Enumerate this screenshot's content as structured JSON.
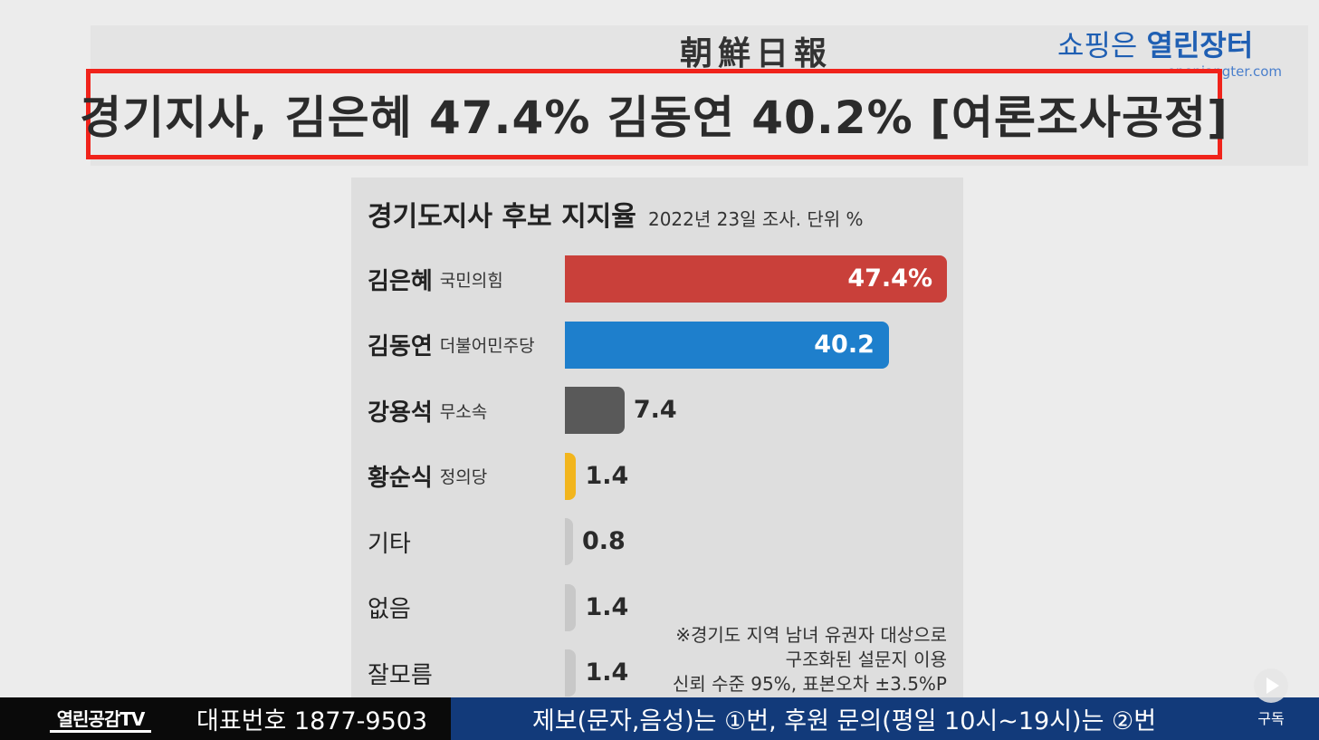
{
  "masthead": "朝鮮日報",
  "brand": {
    "prefix": "쇼핑은",
    "name": "열린장터",
    "url": "openjangter.com"
  },
  "headline": "경기지사, 김은혜 47.4% 김동연 40.2% [여론조사공정]",
  "chart_data": {
    "type": "bar",
    "orientation": "horizontal",
    "title": "경기도지사 후보 지지율",
    "subtitle": "2022년 23일 조사. 단위 %",
    "categories": [
      "김은혜",
      "김동연",
      "강용석",
      "황순식",
      "기타",
      "없음",
      "잘모름"
    ],
    "parties": [
      "국민의힘",
      "더불어민주당",
      "무소속",
      "정의당",
      "",
      "",
      ""
    ],
    "values": [
      47.4,
      40.2,
      7.4,
      1.4,
      0.8,
      1.4,
      1.4
    ],
    "value_labels": [
      "47.4%",
      "40.2",
      "7.4",
      "1.4",
      "0.8",
      "1.4",
      "1.4"
    ],
    "colors": [
      "#c9403a",
      "#1e7fcc",
      "#595959",
      "#f2b51d",
      "#c8c8c8",
      "#c8c8c8",
      "#c8c8c8"
    ],
    "bold_names": [
      true,
      true,
      true,
      true,
      false,
      false,
      false
    ],
    "xlim": [
      0,
      47.4
    ],
    "note": [
      "※경기도 지역 남녀 유권자 대상으로",
      "구조화된 설문지 이용",
      "신뢰 수준 95%, 표본오차 ±3.5%P"
    ]
  },
  "ticker": {
    "logo": "열린공감TV",
    "phone": "대표번호 1877-9503",
    "message": "제보(문자,음성)는 ①번, 후원 문의(평일 10시~19시)는 ②번"
  },
  "subscribe_label": "구독"
}
